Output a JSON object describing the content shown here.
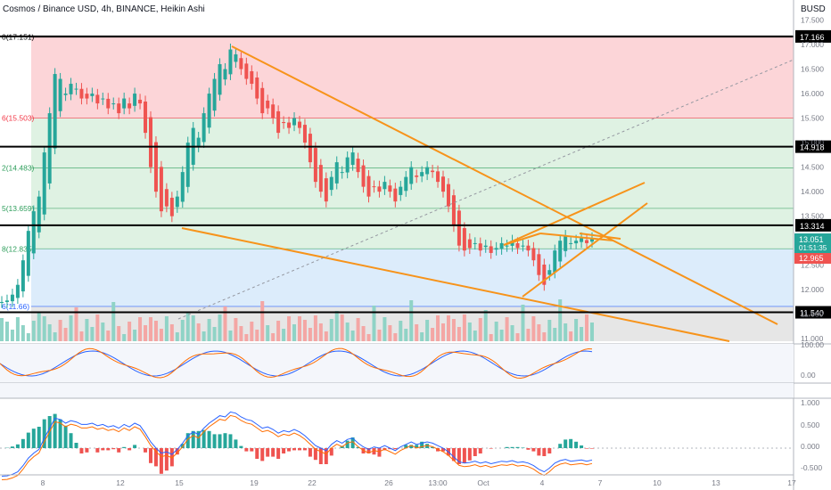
{
  "header": {
    "title": "Cosmos / Binance USD, 4h, BINANCE, Heikin Ashi",
    "currency": "BUSD"
  },
  "chart_data": {
    "type": "candlestick",
    "price_axis": {
      "ticks": [
        "17.500",
        "17.000",
        "16.500",
        "16.000",
        "15.500",
        "15.000",
        "14.500",
        "14.000",
        "13.500",
        "13.000",
        "12.500",
        "12.000",
        "11.500",
        "11.000"
      ],
      "ylim": [
        10.95,
        17.6
      ]
    },
    "time_axis": {
      "labels": [
        "8",
        "12",
        "15",
        "19",
        "22",
        "26",
        "13:00",
        "Oct",
        "4",
        "7",
        "10",
        "13",
        "17"
      ],
      "xlim": [
        0,
        100
      ]
    },
    "fib_levels": [
      {
        "ratio": "0",
        "label": "0(17.151)",
        "value": 17.151,
        "color": "#000000"
      },
      {
        "ratio": "0.236",
        "label": "6(15.503)",
        "value": 15.503,
        "color": "#f23645"
      },
      {
        "ratio": "0.382",
        "label": "2(14.483)",
        "value": 14.483,
        "color": "#2e9e5b"
      },
      {
        "ratio": "0.5",
        "label": "5(13.659)",
        "value": 13.659,
        "color": "#2e9e5b"
      },
      {
        "ratio": "0.618",
        "label": "8(12.835)",
        "value": 12.835,
        "color": "#2e9e5b"
      },
      {
        "ratio": "0.786",
        "label": "6(11.66)",
        "value": 11.66,
        "color": "#2962ff"
      }
    ],
    "horizontal_levels": [
      {
        "value": 17.166,
        "label": "17.166"
      },
      {
        "value": 14.918,
        "label": "14.918"
      },
      {
        "value": 13.314,
        "label": "13.314"
      },
      {
        "value": 11.54,
        "label": "11.540"
      }
    ],
    "price_tags": [
      {
        "label": "13.051",
        "sub": "01:51:35",
        "color": "#26a69a"
      },
      {
        "label": "12.965",
        "color": "#ef5350"
      }
    ],
    "candles_close": [
      11.75,
      11.78,
      11.9,
      12.1,
      12.6,
      13.2,
      13.6,
      13.9,
      14.8,
      15.6,
      16.4,
      16.3,
      16.0,
      16.2,
      16.1,
      15.9,
      15.9,
      16.0,
      15.8,
      15.9,
      15.7,
      15.8,
      15.6,
      15.9,
      15.7,
      16.0,
      15.8,
      15.2,
      14.5,
      14.0,
      13.6,
      13.7,
      13.5,
      13.9,
      14.4,
      15.0,
      15.3,
      15.1,
      15.6,
      16.0,
      16.3,
      16.6,
      16.5,
      16.9,
      16.8,
      16.5,
      16.3,
      16.2,
      15.9,
      15.6,
      15.7,
      15.5,
      15.2,
      15.4,
      15.3,
      15.5,
      15.3,
      15.0,
      14.6,
      14.2,
      14.0,
      13.8,
      14.3,
      14.6,
      14.4,
      14.7,
      14.8,
      14.4,
      14.1,
      13.9,
      14.1,
      14.0,
      14.2,
      14.0,
      13.8,
      14.1,
      14.3,
      14.5,
      14.3,
      14.4,
      14.5,
      14.4,
      14.2,
      14.0,
      13.7,
      13.3,
      12.9,
      12.8,
      12.85,
      12.95,
      12.8,
      12.9,
      12.75,
      12.85,
      12.95,
      12.9,
      13.0,
      12.85,
      12.9,
      12.8,
      12.6,
      12.3,
      12.1,
      12.4,
      12.8,
      13.0,
      13.1,
      12.95,
      13.0,
      13.05,
      12.95,
      13.05
    ],
    "oscillators": [
      {
        "name": "stoch_rsi",
        "ticks": [
          "100.00",
          "0.00"
        ],
        "last": [
          85,
          75
        ]
      },
      {
        "name": "macd",
        "ticks": [
          "1.000",
          "0.500",
          "0.000",
          "-0.500"
        ]
      }
    ]
  }
}
